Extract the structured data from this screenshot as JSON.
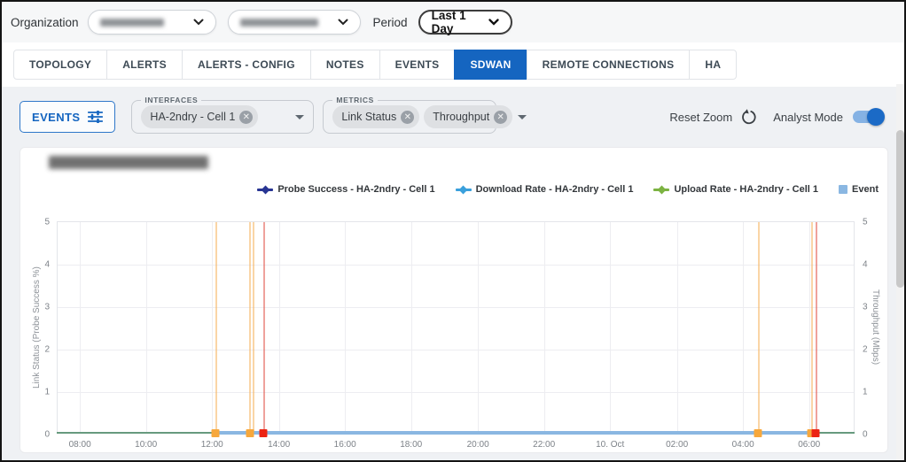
{
  "topbar": {
    "organization_label": "Organization",
    "period_label": "Period",
    "period_value": "Last 1 Day"
  },
  "tabs": [
    {
      "label": "TOPOLOGY",
      "active": false
    },
    {
      "label": "ALERTS",
      "active": false
    },
    {
      "label": "ALERTS - CONFIG",
      "active": false
    },
    {
      "label": "NOTES",
      "active": false
    },
    {
      "label": "EVENTS",
      "active": false
    },
    {
      "label": "SDWAN",
      "active": true
    },
    {
      "label": "REMOTE CONNECTIONS",
      "active": false
    },
    {
      "label": "HA",
      "active": false
    }
  ],
  "filters": {
    "events_button_label": "EVENTS",
    "interfaces": {
      "label": "INTERFACES",
      "chips": [
        "HA-2ndry - Cell 1"
      ]
    },
    "metrics": {
      "label": "METRICS",
      "chips": [
        "Link Status",
        "Throughput"
      ]
    },
    "reset_zoom_label": "Reset Zoom",
    "analyst_mode_label": "Analyst Mode",
    "analyst_mode_on": true
  },
  "chart_data": {
    "type": "line",
    "legend": [
      {
        "name": "Probe Success - HA-2ndry - Cell 1",
        "color": "#283593",
        "marker": "line-diamond"
      },
      {
        "name": "Download Rate - HA-2ndry - Cell 1",
        "color": "#3aa0dc",
        "marker": "line-diamond"
      },
      {
        "name": "Upload Rate - HA-2ndry - Cell 1",
        "color": "#7cb342",
        "marker": "line-diamond"
      },
      {
        "name": "Event",
        "color": "#8ab7e2",
        "marker": "square"
      }
    ],
    "y_left": {
      "label": "Link Status (Probe Success %)",
      "min": 0,
      "max": 5,
      "ticks": [
        0,
        1,
        2,
        3,
        4,
        5
      ]
    },
    "y_right": {
      "label": "Throughput (Mbps)",
      "min": 0,
      "max": 5,
      "ticks": [
        0,
        1,
        2,
        3,
        4,
        5
      ]
    },
    "x_ticks": [
      {
        "label": "08:00",
        "pct": 2.8
      },
      {
        "label": "10:00",
        "pct": 11.1
      },
      {
        "label": "12:00",
        "pct": 19.4
      },
      {
        "label": "14:00",
        "pct": 27.8
      },
      {
        "label": "16:00",
        "pct": 36.1
      },
      {
        "label": "18:00",
        "pct": 44.4
      },
      {
        "label": "20:00",
        "pct": 52.8
      },
      {
        "label": "22:00",
        "pct": 61.1
      },
      {
        "label": "10. Oct",
        "pct": 69.4
      },
      {
        "label": "02:00",
        "pct": 77.8
      },
      {
        "label": "04:00",
        "pct": 86.1
      },
      {
        "label": "06:00",
        "pct": 94.4
      }
    ],
    "series": [
      {
        "name": "Probe Success - HA-2ndry - Cell 1",
        "color": "#283593",
        "y_flat": 0
      },
      {
        "name": "Download Rate - HA-2ndry - Cell 1",
        "color": "#3aa0dc",
        "y_flat": 0
      },
      {
        "name": "Upload Rate - HA-2ndry - Cell 1",
        "color": "#7cb342",
        "y_flat": 0
      }
    ],
    "event_lines": [
      {
        "pct": 19.8,
        "severity": "warning",
        "color": "#f6b35c"
      },
      {
        "pct": 24.0,
        "severity": "warning",
        "color": "#f6b35c"
      },
      {
        "pct": 24.5,
        "severity": "warning",
        "color": "#f6b35c"
      },
      {
        "pct": 25.8,
        "severity": "critical",
        "color": "#e2564b"
      },
      {
        "pct": 88.0,
        "severity": "warning",
        "color": "#f6b35c"
      },
      {
        "pct": 94.6,
        "severity": "warning",
        "color": "#f6b35c"
      },
      {
        "pct": 95.2,
        "severity": "critical",
        "color": "#e2564b"
      }
    ],
    "event_markers": [
      {
        "pct": 19.8,
        "severity": "warning",
        "color": "#f7a83c"
      },
      {
        "pct": 24.2,
        "severity": "warning",
        "color": "#f7a83c"
      },
      {
        "pct": 25.8,
        "severity": "critical",
        "color": "#ec2313"
      },
      {
        "pct": 88.0,
        "severity": "warning",
        "color": "#f7a83c"
      },
      {
        "pct": 94.6,
        "severity": "warning",
        "color": "#f7a83c"
      },
      {
        "pct": 95.2,
        "severity": "critical",
        "color": "#ec2313"
      }
    ],
    "baseline": {
      "upload_download_line_color": "#679a7e",
      "event_line_color": "#8ab7e2",
      "event_line_start_pct": 19.8,
      "event_line_end_pct": 95.2
    }
  }
}
